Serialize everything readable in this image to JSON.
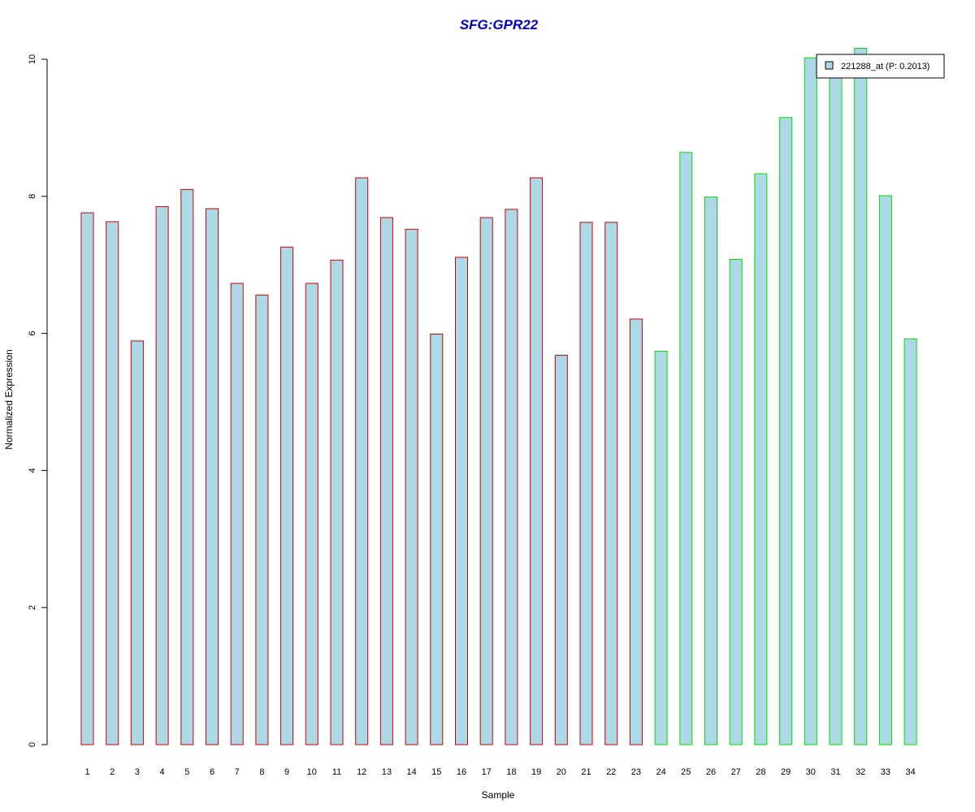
{
  "chart_data": {
    "type": "bar",
    "title": "SFG:GPR22",
    "xlabel": "Sample",
    "ylabel": "Normalized Expression",
    "ylim": [
      0,
      10
    ],
    "yticks": [
      0,
      2,
      4,
      6,
      8,
      10
    ],
    "categories": [
      "1",
      "2",
      "3",
      "4",
      "5",
      "6",
      "7",
      "8",
      "9",
      "10",
      "11",
      "12",
      "13",
      "14",
      "15",
      "16",
      "17",
      "18",
      "19",
      "20",
      "21",
      "22",
      "23",
      "24",
      "25",
      "26",
      "27",
      "28",
      "29",
      "30",
      "31",
      "32",
      "33",
      "34"
    ],
    "series": [
      {
        "name": "221288_at (P: 0.2013)",
        "values": [
          7.76,
          7.63,
          5.89,
          7.85,
          8.1,
          7.82,
          6.73,
          6.56,
          7.26,
          6.73,
          7.07,
          8.27,
          7.69,
          7.52,
          5.99,
          7.11,
          7.69,
          7.81,
          8.27,
          5.68,
          7.62,
          7.62,
          6.21,
          5.74,
          8.64,
          7.99,
          7.08,
          8.33,
          9.15,
          10.02,
          9.78,
          10.16,
          8.01,
          5.92
        ]
      }
    ],
    "group_colors": [
      "#cc0000",
      "#cc0000",
      "#cc0000",
      "#cc0000",
      "#cc0000",
      "#cc0000",
      "#cc0000",
      "#cc0000",
      "#cc0000",
      "#cc0000",
      "#cc0000",
      "#cc0000",
      "#cc0000",
      "#cc0000",
      "#cc0000",
      "#cc0000",
      "#cc0000",
      "#cc0000",
      "#cc0000",
      "#cc0000",
      "#cc0000",
      "#cc0000",
      "#cc0000",
      "#00dd00",
      "#00dd00",
      "#00dd00",
      "#00dd00",
      "#00dd00",
      "#00dd00",
      "#00dd00",
      "#00dd00",
      "#00dd00",
      "#00dd00",
      "#00dd00"
    ],
    "bar_fill": "#add8e6",
    "title_color": "#0000cc",
    "legend": {
      "label": "221288_at (P: 0.2013)",
      "position": "top-right"
    },
    "grid": false
  }
}
